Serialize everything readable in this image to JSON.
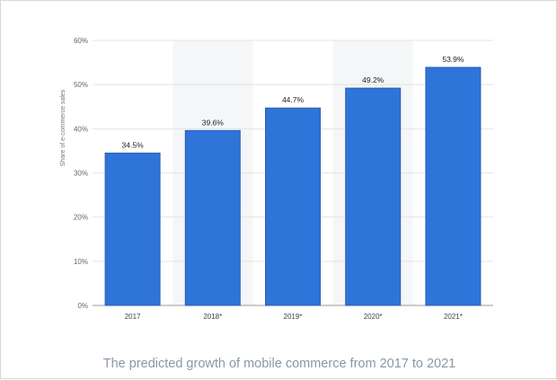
{
  "caption": "The predicted growth of mobile commerce from 2017 to 2021",
  "chart_data": {
    "type": "bar",
    "ylabel": "Share of e-commerce sales",
    "categories": [
      "2017",
      "2018*",
      "2019*",
      "2020*",
      "2021*"
    ],
    "values": [
      34.5,
      39.6,
      44.7,
      49.2,
      53.9
    ],
    "value_labels": [
      "34.5%",
      "39.6%",
      "44.7%",
      "49.2%",
      "53.9%"
    ],
    "ylim": [
      0,
      60
    ],
    "yticks": [
      0,
      10,
      20,
      30,
      40,
      50,
      60
    ],
    "ytick_labels": [
      "0%",
      "10%",
      "20%",
      "30%",
      "40%",
      "50%",
      "60%"
    ],
    "grid": true,
    "bar_color": "#2f74d8",
    "bar_edge_color": "#2a5fb0",
    "band_color": "#f5f6f8"
  }
}
